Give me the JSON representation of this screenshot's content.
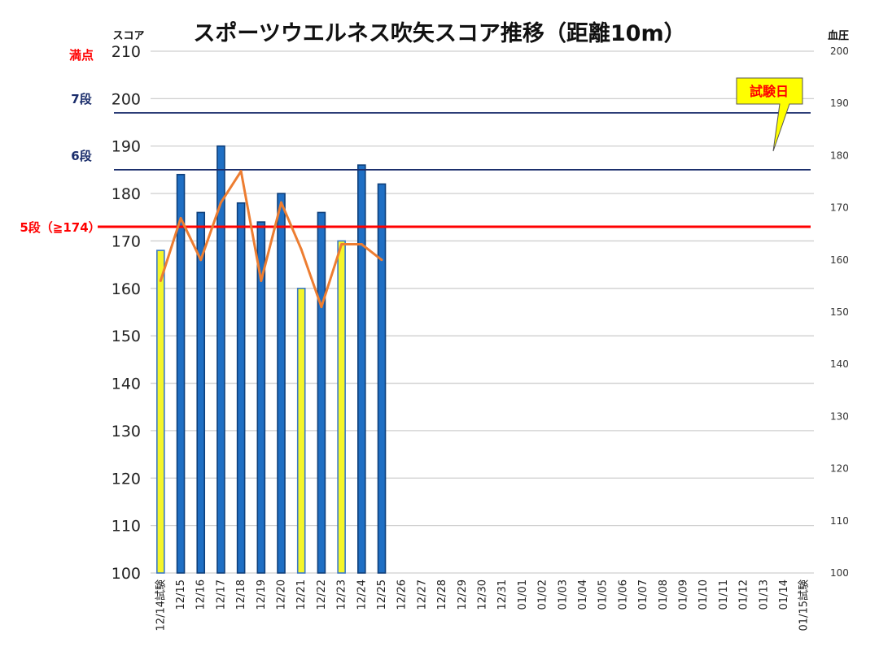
{
  "chart_data": {
    "type": "bar",
    "title": "スポーツウエルネス吹矢スコア推移（距離10m）",
    "y_left_label": "スコア",
    "y_right_label": "血圧",
    "y_left_range": [
      100,
      210
    ],
    "y_left_ticks": [
      "100",
      "110",
      "120",
      "130",
      "140",
      "150",
      "160",
      "170",
      "180",
      "190",
      "200",
      "210"
    ],
    "y_right_range": [
      100,
      200
    ],
    "y_right_ticks": [
      "100",
      "110",
      "120",
      "130",
      "140",
      "150",
      "160",
      "170",
      "180",
      "190",
      "200"
    ],
    "grid": true,
    "categories": [
      "12/14試験",
      "12/15",
      "12/16",
      "12/17",
      "12/18",
      "12/19",
      "12/20",
      "12/21",
      "12/22",
      "12/23",
      "12/24",
      "12/25",
      "12/26",
      "12/27",
      "12/28",
      "12/29",
      "12/30",
      "12/31",
      "01/01",
      "01/02",
      "01/03",
      "01/04",
      "01/05",
      "01/06",
      "01/07",
      "01/08",
      "01/09",
      "01/10",
      "01/11",
      "01/12",
      "01/13",
      "01/14",
      "01/15試験"
    ],
    "series": [
      {
        "axis": "left",
        "values": [
          168,
          184,
          176,
          190,
          178,
          174,
          180,
          160,
          176,
          170,
          186,
          182,
          null,
          null,
          null,
          null,
          null,
          null,
          null,
          null,
          null,
          null,
          null,
          null,
          null,
          null,
          null,
          null,
          null,
          null,
          null,
          null,
          null
        ],
        "bar_kind": [
          "yellow",
          "blue",
          "blue",
          "blue",
          "blue",
          "blue",
          "blue",
          "yellow",
          "blue",
          "yellow",
          "blue",
          "blue"
        ]
      },
      {
        "axis": "right",
        "type": "line",
        "values": [
          156,
          168,
          160,
          171,
          177,
          156,
          171,
          162,
          151,
          163,
          163,
          160,
          null,
          null,
          null,
          null,
          null,
          null,
          null,
          null,
          null,
          null,
          null,
          null,
          null,
          null,
          null,
          null,
          null,
          null,
          null,
          null,
          null
        ]
      }
    ],
    "reference_lines": [
      {
        "label": "満点",
        "value": 210,
        "color": "#ff0000"
      },
      {
        "label": "7段",
        "value": 197,
        "color": "#1a2d6b"
      },
      {
        "label": "6段",
        "value": 185,
        "color": "#1a2d6b"
      },
      {
        "label": "5段（≧174）",
        "value": 173,
        "color": "#ff0000"
      }
    ],
    "colors": {
      "bar_blue": "#1f6fc4",
      "bar_blue_edge": "#0e3f7a",
      "bar_yellow": "#f5f52a",
      "bar_yellow_edge": "#3a78c4",
      "line": "#ed7d31",
      "grid": "#cfcfcf",
      "callout_fill": "#ffff00"
    },
    "annotation": {
      "text": "試験日",
      "target": "01/15試験"
    }
  }
}
